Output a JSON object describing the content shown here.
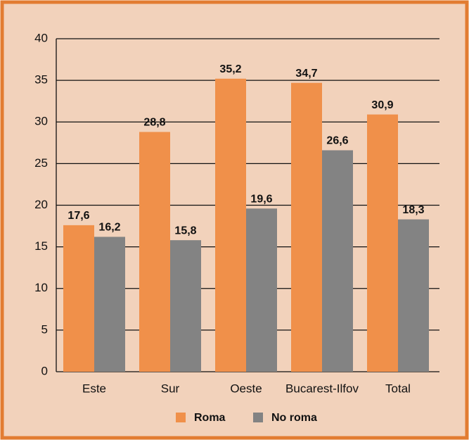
{
  "chart_data": {
    "type": "bar",
    "categories": [
      "Este",
      "Sur",
      "Oeste",
      "Bucarest-Ilfov",
      "Total"
    ],
    "series": [
      {
        "name": "Roma",
        "color": "#f0904a",
        "values": [
          17.6,
          28.8,
          35.2,
          34.7,
          30.9
        ],
        "value_labels": [
          "17,6",
          "28,8",
          "35,2",
          "34,7",
          "30,9"
        ]
      },
      {
        "name": "No roma",
        "color": "#838383",
        "values": [
          16.2,
          15.8,
          19.6,
          26.6,
          18.3
        ],
        "value_labels": [
          "16,2",
          "15,8",
          "19,6",
          "26,6",
          "18,3"
        ]
      }
    ],
    "ylim": [
      0,
      40
    ],
    "yticks": [
      0,
      5,
      10,
      15,
      20,
      25,
      30,
      35,
      40
    ],
    "grid": true,
    "legend": "bottom"
  }
}
